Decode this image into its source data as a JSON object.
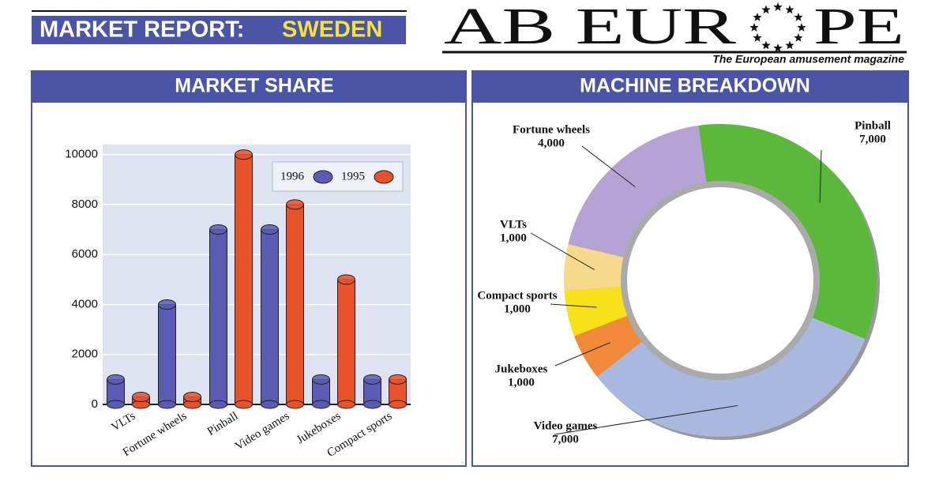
{
  "header": {
    "report": "MARKET REPORT:",
    "country": "SWEDEN",
    "logo_left": "AB EUR",
    "logo_right": "PE",
    "tagline": "The European amusement magazine"
  },
  "chart_data": [
    {
      "type": "bar",
      "title": "MARKET SHARE",
      "categories": [
        "VLTs",
        "Fortune wheels",
        "Pinball",
        "Video games",
        "Jukeboxes",
        "Compact sports"
      ],
      "series": [
        {
          "name": "1996",
          "color": "#5a5cb4",
          "values": [
            1000,
            4000,
            7000,
            7000,
            1000,
            1000
          ]
        },
        {
          "name": "1995",
          "color": "#e8522a",
          "values": [
            300,
            300,
            10000,
            8000,
            5000,
            1000
          ]
        }
      ],
      "ylim": [
        0,
        10400
      ],
      "yticks": [
        0,
        2000,
        4000,
        6000,
        8000,
        10000
      ],
      "grid": true
    },
    {
      "type": "donut",
      "title": "MACHINE BREAKDOWN",
      "categories": [
        "Pinball",
        "Video games",
        "Jukeboxes",
        "Compact sports",
        "VLTs",
        "Fortune wheels"
      ],
      "values": [
        7000,
        7000,
        1000,
        1000,
        1000,
        4000
      ],
      "value_labels": [
        "7,000",
        "7,000",
        "1,000",
        "1,000",
        "1,000",
        "4,000"
      ],
      "colors": [
        "#5cb83a",
        "#a9b8de",
        "#f08a3a",
        "#f7e21a",
        "#f6d98a",
        "#b6a3d6"
      ]
    }
  ]
}
